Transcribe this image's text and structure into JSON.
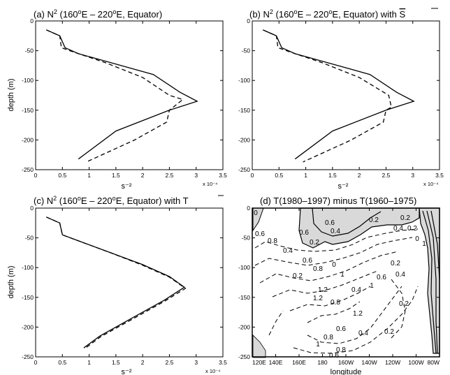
{
  "chart_data": [
    {
      "type": "line",
      "title": "(a) N² (160°E – 220°E, Equator)",
      "title_parts": {
        "pre": "(a) N",
        "sup": "2",
        "post": " (160",
        "deg": "o",
        "rest": "E – 220",
        "deg2": "o",
        "tail": "E, Equator)"
      },
      "xlabel": "s⁻²",
      "ylabel": "depth (m)",
      "xscale_note": "x 10⁻⁴",
      "xlim": [
        0,
        3.5
      ],
      "ylim": [
        -250,
        0
      ],
      "xticks": [
        "0",
        "0.5",
        "1",
        "1.5",
        "2",
        "2.5",
        "3",
        "3.5"
      ],
      "yticks": [
        "0",
        "-50",
        "-100",
        "-150",
        "-200",
        "-250"
      ],
      "series": [
        {
          "style": "solid",
          "points": [
            [
              0.2,
              -15
            ],
            [
              0.45,
              -25
            ],
            [
              0.55,
              -45
            ],
            [
              0.8,
              -55
            ],
            [
              1.4,
              -70
            ],
            [
              2.2,
              -90
            ],
            [
              2.7,
              -120
            ],
            [
              3.02,
              -135
            ],
            [
              2.5,
              -150
            ],
            [
              1.5,
              -185
            ],
            [
              0.8,
              -232
            ]
          ]
        },
        {
          "style": "dashed",
          "points": [
            [
              0.2,
              -15
            ],
            [
              0.45,
              -25
            ],
            [
              0.48,
              -45
            ],
            [
              0.8,
              -55
            ],
            [
              1.3,
              -70
            ],
            [
              2.0,
              -95
            ],
            [
              2.5,
              -125
            ],
            [
              2.75,
              -132
            ],
            [
              2.5,
              -150
            ],
            [
              2.45,
              -170
            ],
            [
              1.85,
              -200
            ],
            [
              0.95,
              -237
            ]
          ]
        }
      ]
    },
    {
      "type": "line",
      "title": "(b) N² (160°E – 220°E, Equator) with S̄",
      "title_parts": {
        "pre": "(b) N",
        "sup": "2",
        "post": " (160",
        "deg": "o",
        "rest": "E – 220",
        "deg2": "o",
        "tail": "E, Equator) with ",
        "bar": "S"
      },
      "xlabel": "s⁻²",
      "ylabel": "",
      "xscale_note": "x 10⁻⁴",
      "xlim": [
        0,
        3.5
      ],
      "ylim": [
        -250,
        0
      ],
      "xticks": [
        "0",
        "0.5",
        "1",
        "1.5",
        "2",
        "2.5",
        "3",
        "3.5"
      ],
      "yticks": [
        "0",
        "-50",
        "-100",
        "-150",
        "-200",
        "-250"
      ],
      "series": [
        {
          "style": "solid",
          "points": [
            [
              0.2,
              -15
            ],
            [
              0.45,
              -25
            ],
            [
              0.55,
              -45
            ],
            [
              0.8,
              -55
            ],
            [
              1.4,
              -70
            ],
            [
              2.2,
              -90
            ],
            [
              2.7,
              -120
            ],
            [
              3.02,
              -135
            ],
            [
              2.5,
              -150
            ],
            [
              1.5,
              -185
            ],
            [
              0.8,
              -232
            ]
          ]
        },
        {
          "style": "dashed",
          "points": [
            [
              0.2,
              -15
            ],
            [
              0.45,
              -25
            ],
            [
              0.48,
              -45
            ],
            [
              0.8,
              -55
            ],
            [
              1.3,
              -70
            ],
            [
              2.0,
              -95
            ],
            [
              2.55,
              -125
            ],
            [
              2.6,
              -145
            ],
            [
              2.5,
              -150
            ],
            [
              2.45,
              -170
            ],
            [
              1.85,
              -200
            ],
            [
              0.95,
              -237
            ]
          ]
        }
      ]
    },
    {
      "type": "line",
      "title": "(c) N² (160°E – 220°E, Equator) with T̄",
      "title_parts": {
        "pre": "(c) N",
        "sup": "2",
        "post": " (160",
        "deg": "o",
        "rest": "E – 220",
        "deg2": "o",
        "tail": "E, Equator) with ",
        "bar": "T"
      },
      "xlabel": "s⁻²",
      "ylabel": "depth (m)",
      "xscale_note": "x 10⁻⁴",
      "xlim": [
        0,
        3.5
      ],
      "ylim": [
        -250,
        0
      ],
      "xticks": [
        "0",
        "0.5",
        "1",
        "1.5",
        "2",
        "2.5",
        "3",
        "3.5"
      ],
      "yticks": [
        "0",
        "-50",
        "-100",
        "-150",
        "-200",
        "-250"
      ],
      "series": [
        {
          "style": "solid",
          "points": [
            [
              0.2,
              -15
            ],
            [
              0.45,
              -25
            ],
            [
              0.5,
              -45
            ],
            [
              0.8,
              -55
            ],
            [
              1.4,
              -75
            ],
            [
              2.0,
              -95
            ],
            [
              2.5,
              -115
            ],
            [
              2.78,
              -133
            ],
            [
              2.4,
              -155
            ],
            [
              1.8,
              -185
            ],
            [
              1.2,
              -215
            ],
            [
              0.9,
              -235
            ]
          ]
        },
        {
          "style": "dashed",
          "points": [
            [
              0.2,
              -15
            ],
            [
              0.45,
              -25
            ],
            [
              0.5,
              -45
            ],
            [
              0.8,
              -55
            ],
            [
              1.4,
              -75
            ],
            [
              2.0,
              -96
            ],
            [
              2.5,
              -116
            ],
            [
              2.8,
              -135
            ],
            [
              2.42,
              -156
            ],
            [
              1.82,
              -186
            ],
            [
              1.22,
              -216
            ],
            [
              0.92,
              -236
            ]
          ]
        }
      ]
    },
    {
      "type": "contour",
      "title": "(d) T(1980–1997) minus T(1960–1975)",
      "xlabel": "longitude",
      "ylabel": "",
      "xlim": [
        120,
        280
      ],
      "ylim": [
        -250,
        0
      ],
      "xticks": [
        "120E",
        "140E",
        "160E",
        "180",
        "160W",
        "140W",
        "120W",
        "100W",
        "80W"
      ],
      "yticks": [
        "0",
        "-50",
        "-100",
        "-150",
        "-200",
        "-250"
      ],
      "shaded_regions": "negative anomalies (grey)",
      "contour_labels": [
        "0",
        "0.2",
        "0.2",
        "0.4",
        "0.2",
        "0",
        "0.6",
        "0.4",
        "0.6",
        "0.6",
        "0.8",
        "0.2",
        "0.4",
        "0.6",
        "1",
        "0",
        "0.8",
        "0.2",
        "1",
        "1.2",
        "0.8",
        "1.2",
        "0.4",
        "0.6",
        "1",
        "0.2",
        "0.4",
        "1.2",
        "0.2",
        "0.6",
        "0.8",
        "1",
        "0.8",
        "0.6",
        "0.4",
        "0.2"
      ]
    }
  ]
}
